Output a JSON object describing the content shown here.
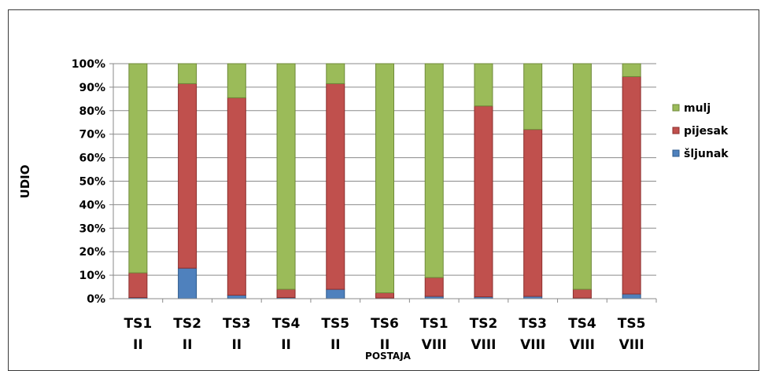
{
  "chart_data": {
    "type": "bar",
    "stacked": "percent",
    "xlabel": "POSTAJA",
    "ylabel": "UDIO",
    "ylim": [
      0,
      100
    ],
    "yticks": [
      "0%",
      "10%",
      "20%",
      "30%",
      "40%",
      "50%",
      "60%",
      "70%",
      "80%",
      "90%",
      "100%"
    ],
    "grid": true,
    "legend_position": "right",
    "categories": [
      [
        "TS1",
        "II"
      ],
      [
        "TS2",
        "II"
      ],
      [
        "TS3",
        "II"
      ],
      [
        "TS4",
        "II"
      ],
      [
        "TS5",
        "II"
      ],
      [
        "TS6",
        "II"
      ],
      [
        "TS1",
        "VIII"
      ],
      [
        "TS2",
        "VIII"
      ],
      [
        "TS3",
        "VIII"
      ],
      [
        "TS4",
        "VIII"
      ],
      [
        "TS5",
        "VIII"
      ]
    ],
    "series": [
      {
        "name": "šljunak",
        "color": "#4f81bd",
        "values": [
          0.5,
          13,
          1.5,
          0.5,
          4,
          0.3,
          1,
          0.8,
          1,
          0.3,
          2
        ]
      },
      {
        "name": "pijesak",
        "color": "#c0504d",
        "values": [
          10.5,
          78.5,
          84,
          3.5,
          87.5,
          2.2,
          8,
          81.2,
          71,
          3.7,
          92.5
        ]
      },
      {
        "name": "mulj",
        "color": "#9bbb59",
        "values": [
          89,
          8.5,
          14.5,
          96,
          8.5,
          97.5,
          91,
          18,
          28,
          96,
          5.5
        ]
      }
    ],
    "legend_order": [
      "mulj",
      "pijesak",
      "šljunak"
    ]
  }
}
